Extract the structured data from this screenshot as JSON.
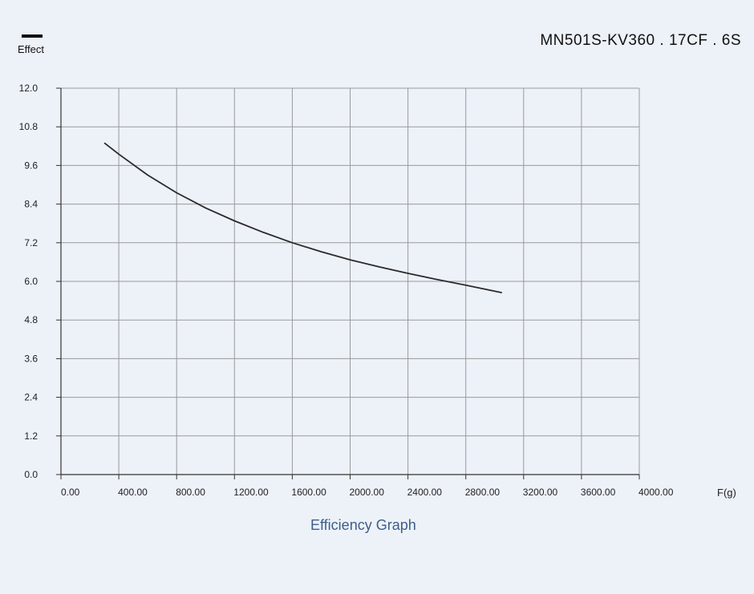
{
  "legend": {
    "label": "Effect",
    "color": "#1a1a1a"
  },
  "model": "MN501S-KV360 . 17CF . 6S",
  "caption": "Efficiency Graph",
  "chart_data": {
    "type": "line",
    "title": "Efficiency Graph",
    "xlabel": "F(g)",
    "ylabel": "",
    "xlim": [
      0,
      4000
    ],
    "ylim": [
      0,
      12
    ],
    "x_ticks": [
      "0.00",
      "400.00",
      "800.00",
      "1200.00",
      "1600.00",
      "2000.00",
      "2400.00",
      "2800.00",
      "3200.00",
      "3600.00",
      "4000.00"
    ],
    "y_ticks": [
      "0.0",
      "1.2",
      "2.4",
      "3.6",
      "4.8",
      "6.0",
      "7.2",
      "8.4",
      "9.6",
      "10.8",
      "12.0"
    ],
    "grid": true,
    "series": [
      {
        "name": "Effect",
        "color": "#2a2a2a",
        "x": [
          300,
          400,
          600,
          800,
          1000,
          1200,
          1400,
          1600,
          1800,
          2000,
          2200,
          2400,
          2600,
          2800,
          3050
        ],
        "y": [
          10.3,
          9.95,
          9.3,
          8.75,
          8.28,
          7.88,
          7.52,
          7.2,
          6.92,
          6.67,
          6.45,
          6.25,
          6.06,
          5.88,
          5.65
        ]
      }
    ]
  }
}
